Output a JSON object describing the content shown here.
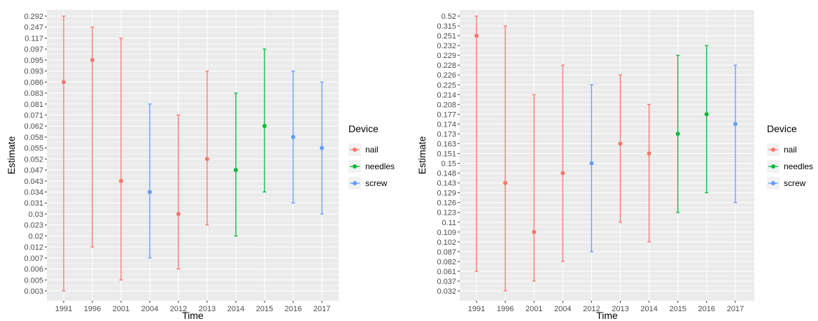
{
  "colors": {
    "nail": "#F8766D",
    "needles": "#00BA38",
    "screw": "#619CFF",
    "panel": "#EBEBEB",
    "grid": "#FFFFFF"
  },
  "chart_data": [
    {
      "type": "scatter",
      "xlabel": "Time",
      "ylabel": "Estimate",
      "categories": [
        "1991",
        "1996",
        "2001",
        "2004",
        "2012",
        "2013",
        "2014",
        "2015",
        "2016",
        "2017"
      ],
      "y_ticks": [
        "0.003",
        "0.005",
        "0.006",
        "0.007",
        "0.012",
        "0.02",
        "0.023",
        "0.03",
        "0.031",
        "0.034",
        "0.043",
        "0.047",
        "0.052",
        "0.055",
        "0.058",
        "0.062",
        "0.071",
        "0.081",
        "0.083",
        "0.086",
        "0.093",
        "0.095",
        "0.097",
        "0.117",
        "0.247",
        "0.292"
      ],
      "grid": true,
      "legend": {
        "title": "Device",
        "placement": "right",
        "entries": [
          "nail",
          "needles",
          "screw"
        ]
      },
      "points": [
        {
          "x": "1991",
          "device": "nail",
          "estimate": "0.086",
          "low": "0.003",
          "high": "0.292"
        },
        {
          "x": "1996",
          "device": "nail",
          "estimate": "0.095",
          "low": "0.012",
          "high": "0.247"
        },
        {
          "x": "2001",
          "device": "nail",
          "estimate": "0.043",
          "low": "0.005",
          "high": "0.117"
        },
        {
          "x": "2004",
          "device": "screw",
          "estimate": "0.034",
          "low": "0.007",
          "high": "0.081"
        },
        {
          "x": "2012",
          "device": "nail",
          "estimate": "0.03",
          "low": "0.006",
          "high": "0.071"
        },
        {
          "x": "2013",
          "device": "nail",
          "estimate": "0.052",
          "low": "0.023",
          "high": "0.093"
        },
        {
          "x": "2014",
          "device": "needles",
          "estimate": "0.047",
          "low": "0.02",
          "high": "0.083"
        },
        {
          "x": "2015",
          "device": "needles",
          "estimate": "0.062",
          "low": "0.034",
          "high": "0.097"
        },
        {
          "x": "2016",
          "device": "screw",
          "estimate": "0.058",
          "low": "0.031",
          "high": "0.093"
        },
        {
          "x": "2017",
          "device": "screw",
          "estimate": "0.055",
          "low": "0.03",
          "high": "0.086"
        }
      ]
    },
    {
      "type": "scatter",
      "xlabel": "Time",
      "ylabel": "Estimate",
      "categories": [
        "1991",
        "1996",
        "2001",
        "2004",
        "2012",
        "2013",
        "2014",
        "2015",
        "2016",
        "2017"
      ],
      "y_ticks": [
        "0.032",
        "0.037",
        "0.061",
        "0.082",
        "0.087",
        "0.102",
        "0.109",
        "0.11",
        "0.123",
        "0.126",
        "0.129",
        "0.143",
        "0.148",
        "0.15",
        "0.151",
        "0.163",
        "0.173",
        "0.174",
        "0.177",
        "0.208",
        "0.214",
        "0.225",
        "0.226",
        "0.228",
        "0.229",
        "0.232",
        "0.251",
        "0.315",
        "0.52"
      ],
      "grid": true,
      "legend": {
        "title": "Device",
        "placement": "right",
        "entries": [
          "nail",
          "needles",
          "screw"
        ]
      },
      "points": [
        {
          "x": "1991",
          "device": "nail",
          "estimate": "0.251",
          "low": "0.061",
          "high": "0.52"
        },
        {
          "x": "1996",
          "device": "nail",
          "estimate": "0.143",
          "low": "0.032",
          "high": "0.315"
        },
        {
          "x": "2001",
          "device": "nail",
          "estimate": "0.109",
          "low": "0.037",
          "high": "0.214"
        },
        {
          "x": "2004",
          "device": "nail",
          "estimate": "0.148",
          "low": "0.082",
          "high": "0.228"
        },
        {
          "x": "2012",
          "device": "screw",
          "estimate": "0.15",
          "low": "0.087",
          "high": "0.225"
        },
        {
          "x": "2013",
          "device": "nail",
          "estimate": "0.163",
          "low": "0.11",
          "high": "0.226"
        },
        {
          "x": "2014",
          "device": "nail",
          "estimate": "0.151",
          "low": "0.102",
          "high": "0.208"
        },
        {
          "x": "2015",
          "device": "needles",
          "estimate": "0.173",
          "low": "0.123",
          "high": "0.229"
        },
        {
          "x": "2016",
          "device": "needles",
          "estimate": "0.177",
          "low": "0.129",
          "high": "0.232"
        },
        {
          "x": "2017",
          "device": "screw",
          "estimate": "0.174",
          "low": "0.126",
          "high": "0.228"
        }
      ]
    }
  ]
}
